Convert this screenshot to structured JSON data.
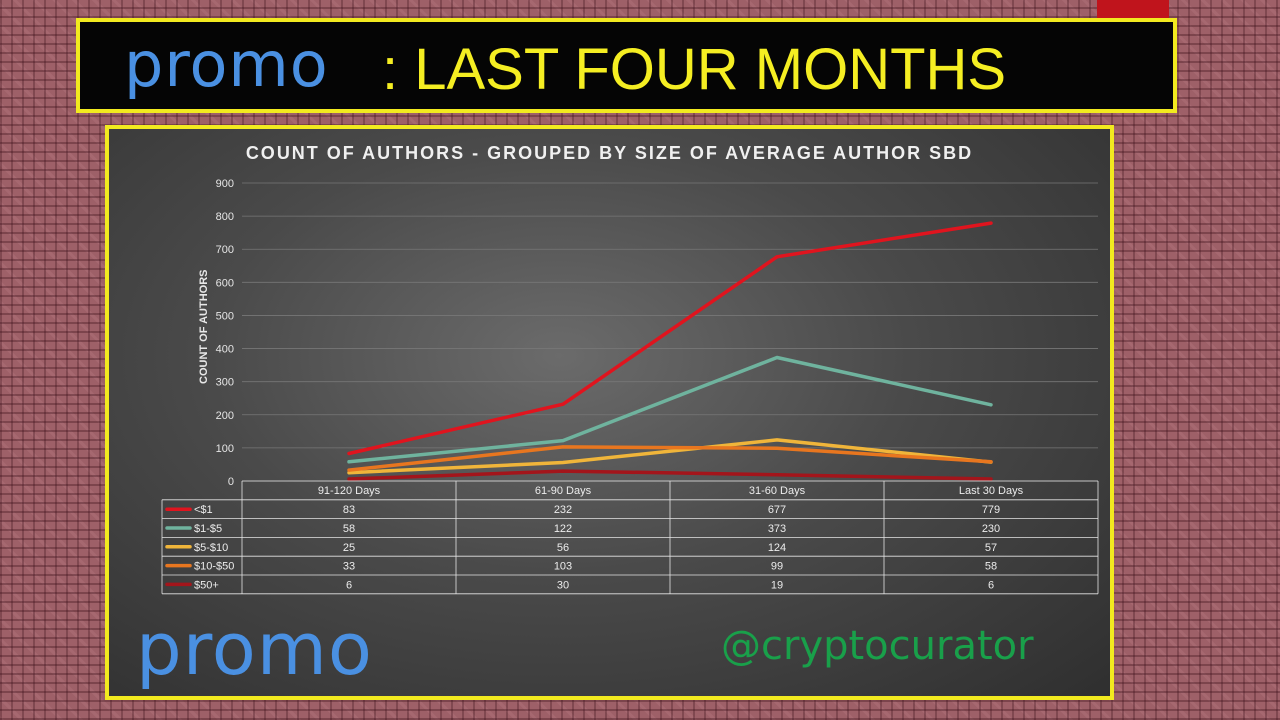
{
  "header": {
    "logo_text": "promo",
    "title": ": LAST FOUR MONTHS"
  },
  "footer": {
    "logo_text": "promo",
    "watermark": "@cryptocurator"
  },
  "colors": {
    "frame": "#f2ea1f",
    "logo": "#4a90e2",
    "watermark": "#19a04a"
  },
  "chart_data": {
    "type": "line",
    "title": "COUNT OF AUTHORS - GROUPED BY SIZE OF AVERAGE AUTHOR SBD",
    "ylabel": "COUNT OF AUTHORS",
    "xlabel": "",
    "categories": [
      "91-120 Days",
      "61-90 Days",
      "31-60 Days",
      "Last 30 Days"
    ],
    "ylim": [
      0,
      900
    ],
    "yticks": [
      0,
      100,
      200,
      300,
      400,
      500,
      600,
      700,
      800,
      900
    ],
    "grid": true,
    "legend": "data-table-below",
    "series": [
      {
        "name": "<$1",
        "color": "#e0141e",
        "values": [
          83,
          232,
          677,
          779
        ]
      },
      {
        "name": "$1-$5",
        "color": "#6fb39e",
        "values": [
          58,
          122,
          373,
          230
        ]
      },
      {
        "name": "$5-$10",
        "color": "#f0b53a",
        "values": [
          25,
          56,
          124,
          57
        ]
      },
      {
        "name": "$10-$50",
        "color": "#e8761f",
        "values": [
          33,
          103,
          99,
          58
        ]
      },
      {
        "name": "$50+",
        "color": "#a3151b",
        "values": [
          6,
          30,
          19,
          6
        ]
      }
    ]
  }
}
